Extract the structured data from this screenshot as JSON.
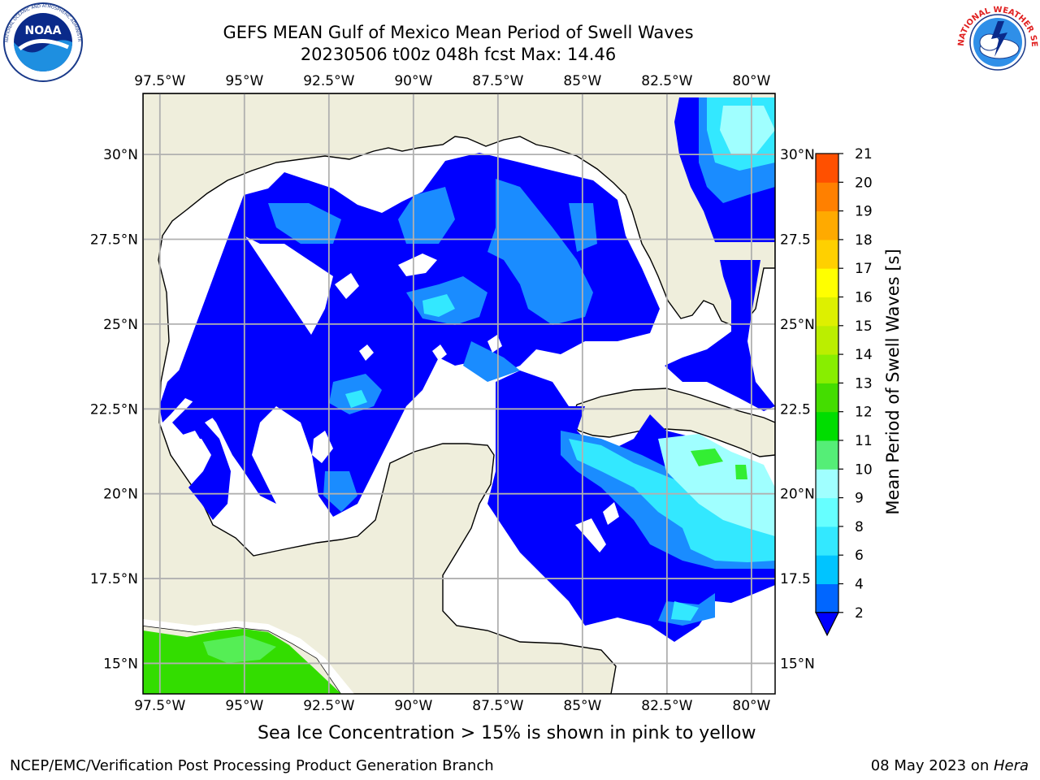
{
  "header": {
    "title_line1": "GEFS MEAN Gulf of Mexico Mean Period of Swell Waves",
    "title_line2": "20230506 t00z 048h fcst   Max: 14.46"
  },
  "logos": {
    "noaa_text": "NOAA",
    "noaa_ring": "NATIONAL OCEANIC AND ATMOSPHERIC ADMINISTRATION · U.S. DEPARTMENT OF COMMERCE",
    "nws_ring": "NATIONAL WEATHER SERVICE"
  },
  "map": {
    "lon_labels": [
      "97.5°W",
      "95°W",
      "92.5°W",
      "90°W",
      "87.5°W",
      "85°W",
      "82.5°W",
      "80°W"
    ],
    "lat_labels_left": [
      "30°N",
      "27.5°N",
      "25°N",
      "22.5°N",
      "20°N",
      "17.5°N",
      "15°N"
    ],
    "lat_labels_right": [
      "30°N",
      "27.5",
      "25°N",
      "22.5",
      "20°N",
      "17.5",
      "15°N"
    ],
    "extent": {
      "lon_min": -98.0,
      "lon_max": -79.3,
      "lat_min": 14.1,
      "lat_max": 31.8
    }
  },
  "colorbar": {
    "label": "Mean Period of Swell Waves [s]",
    "ticks": [
      "2",
      "4",
      "6",
      "8",
      "9",
      "10",
      "11",
      "12",
      "13",
      "14",
      "15",
      "16",
      "17",
      "18",
      "19",
      "20",
      "21"
    ],
    "colors": [
      "#0066ff",
      "#00c4ff",
      "#33e8ff",
      "#66ffff",
      "#a0ffff",
      "#55ee77",
      "#00dd00",
      "#44dd00",
      "#88ee00",
      "#bbee00",
      "#ddf000",
      "#ffff00",
      "#ffd000",
      "#ffaa00",
      "#ff8000",
      "#ff5000",
      "#ff2000",
      "#ff0000"
    ],
    "under_color": "#0000ff"
  },
  "colors": {
    "land": "#efeedc",
    "ocean_nodata": "#ffffff",
    "swell_low": "#0000ff",
    "swell_mid": "#1a8cff",
    "swell_cyan": "#33e8ff",
    "swell_light": "#a0ffff",
    "swell_green": "#33ee33"
  },
  "footer": {
    "note": "Sea Ice Concentration > 15% is shown in pink to yellow",
    "left": "NCEP/EMC/Verification Post Processing Product Generation Branch",
    "right_date": "08 May 2023 on ",
    "right_host": "Hera"
  }
}
